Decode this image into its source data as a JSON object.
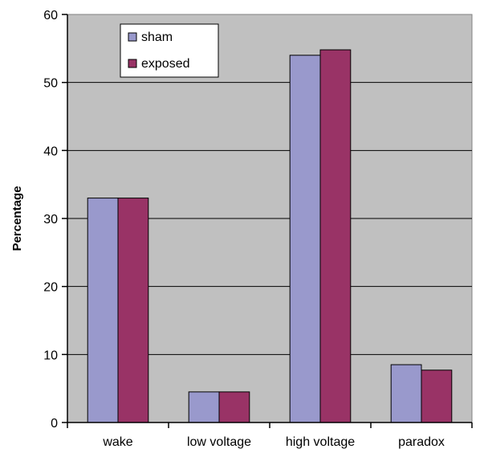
{
  "chart_data": {
    "type": "bar",
    "categories": [
      "wake",
      "low voltage",
      "high voltage",
      "paradox"
    ],
    "series": [
      {
        "name": "sham",
        "values": [
          33,
          4.5,
          54,
          8.5
        ],
        "color": "#9999cc"
      },
      {
        "name": "exposed",
        "values": [
          33,
          4.5,
          54.8,
          7.7
        ],
        "color": "#993366"
      }
    ],
    "title": "",
    "xlabel": "",
    "ylabel": "Percentage",
    "ylim": [
      0,
      60
    ],
    "yticks": [
      "0",
      "10",
      "20",
      "30",
      "40",
      "50",
      "60"
    ],
    "grid": "horizontal",
    "plot_background": "#c0c0c0",
    "legend_position": "top-left"
  }
}
